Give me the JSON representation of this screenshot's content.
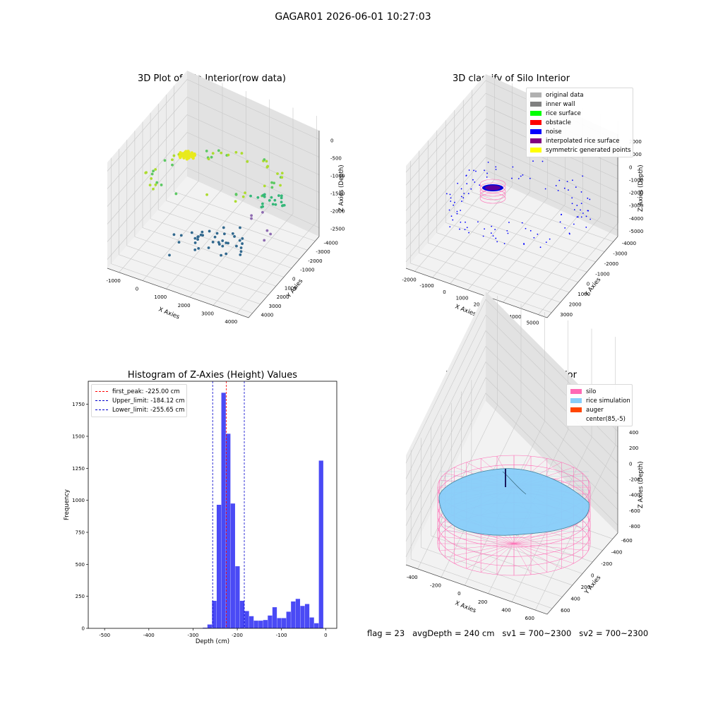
{
  "suptitle": "GAGAR01 2026-06-01 10:27:03",
  "footer": "flag = 23   avgDepth = 240 cm   sv1 = 700~2300   sv2 = 700~2300",
  "colors": {
    "histogram_bar": "#4a4af5",
    "peak_line": "#ff0000",
    "limit_line": "#0000cc",
    "silo": "#ff69b4",
    "rice_simulation": "#87cefa",
    "auger": "#ff4500"
  },
  "chart_data": [
    {
      "type": "scatter3d",
      "title": "3D Plot of Silo Interior(row data)",
      "xlabel": "X Axies",
      "ylabel": "Y Axies",
      "zlabel": "Z Axies (Depth)",
      "x_ticks": [
        "-1000",
        "0",
        "1000",
        "2000",
        "3000",
        "4000"
      ],
      "y_ticks": [
        "-4000",
        "-3000",
        "-2000",
        "-1000",
        "0",
        "1000",
        "2000",
        "3000",
        "4000"
      ],
      "z_ticks": [
        "0",
        "-500",
        "-1000",
        "-1500",
        "-2000",
        "-2500"
      ],
      "xlim": [
        -1500,
        4500
      ],
      "ylim": [
        -4200,
        4200
      ],
      "zlim": [
        -2800,
        200
      ],
      "colormap": "viridis"
    },
    {
      "type": "scatter3d",
      "title": "3D classify of Silo Interior",
      "xlabel": "X Axies",
      "ylabel": "Y Axies",
      "zlabel": "Z Axies (Depth)",
      "x_ticks": [
        "-2000",
        "-1000",
        "0",
        "1000",
        "2000",
        "3000",
        "4000",
        "5000"
      ],
      "y_ticks": [
        "-4000",
        "-3000",
        "-2000",
        "-1000",
        "0",
        "1000",
        "2000",
        "3000"
      ],
      "z_ticks": [
        "2000",
        "1000",
        "0",
        "-1000",
        "-2000",
        "-3000",
        "-4000",
        "-5000"
      ],
      "xlim": [
        -2200,
        5200
      ],
      "ylim": [
        -4200,
        3500
      ],
      "zlim": [
        -5200,
        2200
      ],
      "legend": [
        {
          "label": "original data",
          "color": "#b0b0b0"
        },
        {
          "label": "inner wall",
          "color": "#808080"
        },
        {
          "label": "rice surface",
          "color": "#00ff00"
        },
        {
          "label": "obstacle",
          "color": "#ff0000"
        },
        {
          "label": "noise",
          "color": "#0000ff"
        },
        {
          "label": "interpolated rice surface",
          "color": "#800080"
        },
        {
          "label": "symmetric generated points",
          "color": "#ffff00"
        }
      ]
    },
    {
      "type": "bar",
      "title": "Histogram of Z-Axies (Height) Values",
      "xlabel": "Depth (cm)",
      "ylabel": "Frequency",
      "xlim": [
        -537,
        25
      ],
      "ylim": [
        0,
        1930
      ],
      "x_ticks": [
        -500,
        -400,
        -300,
        -200,
        -100,
        0
      ],
      "y_ticks": [
        0,
        250,
        500,
        750,
        1000,
        1250,
        1500,
        1750
      ],
      "bin_width": 10.5,
      "bins": [
        {
          "left": -278,
          "value": 5
        },
        {
          "left": -267.5,
          "value": 30
        },
        {
          "left": -257,
          "value": 215
        },
        {
          "left": -246.5,
          "value": 965
        },
        {
          "left": -236,
          "value": 1840
        },
        {
          "left": -225.5,
          "value": 1520
        },
        {
          "left": -215,
          "value": 975
        },
        {
          "left": -204.5,
          "value": 485
        },
        {
          "left": -194,
          "value": 215
        },
        {
          "left": -183.5,
          "value": 135
        },
        {
          "left": -173,
          "value": 95
        },
        {
          "left": -162.5,
          "value": 60
        },
        {
          "left": -152,
          "value": 60
        },
        {
          "left": -141.5,
          "value": 65
        },
        {
          "left": -131,
          "value": 100
        },
        {
          "left": -120.5,
          "value": 165
        },
        {
          "left": -110,
          "value": 80
        },
        {
          "left": -99.5,
          "value": 80
        },
        {
          "left": -89,
          "value": 130
        },
        {
          "left": -78.5,
          "value": 210
        },
        {
          "left": -68,
          "value": 230
        },
        {
          "left": -57.5,
          "value": 175
        },
        {
          "left": -47,
          "value": 190
        },
        {
          "left": -36.5,
          "value": 85
        },
        {
          "left": -26,
          "value": 40
        },
        {
          "left": -15.5,
          "value": 1310
        }
      ],
      "vlines": [
        {
          "label": "first_peak: -225.00 cm",
          "x": -225.0,
          "color": "#ff0000"
        },
        {
          "label": "Upper_limit: -184.12 cm",
          "x": -184.12,
          "color": "#0000cc"
        },
        {
          "label": "Lower_limit: -255.65 cm",
          "x": -255.65,
          "color": "#0000cc"
        }
      ]
    },
    {
      "type": "surface3d",
      "title": "3D simulation of Silo Interior",
      "xlabel": "X Axies",
      "ylabel": "Y Axies",
      "zlabel": "Z Axies (Depth)",
      "x_ticks": [
        "-400",
        "-200",
        "0",
        "200",
        "400",
        "600"
      ],
      "y_ticks": [
        "-600",
        "-400",
        "-200",
        "0",
        "200",
        "400",
        "600"
      ],
      "z_ticks": [
        "400",
        "200",
        "0",
        "-200",
        "-400",
        "-600",
        "-800"
      ],
      "xlim": [
        -600,
        750
      ],
      "ylim": [
        -650,
        650
      ],
      "zlim": [
        -900,
        450
      ],
      "legend": [
        {
          "label": "silo",
          "color": "#ff69b4"
        },
        {
          "label": "rice simulation",
          "color": "#87cefa"
        },
        {
          "label": "auger",
          "color": "#ff4500"
        },
        {
          "label": "center(85,-5)",
          "color": ""
        }
      ]
    }
  ]
}
